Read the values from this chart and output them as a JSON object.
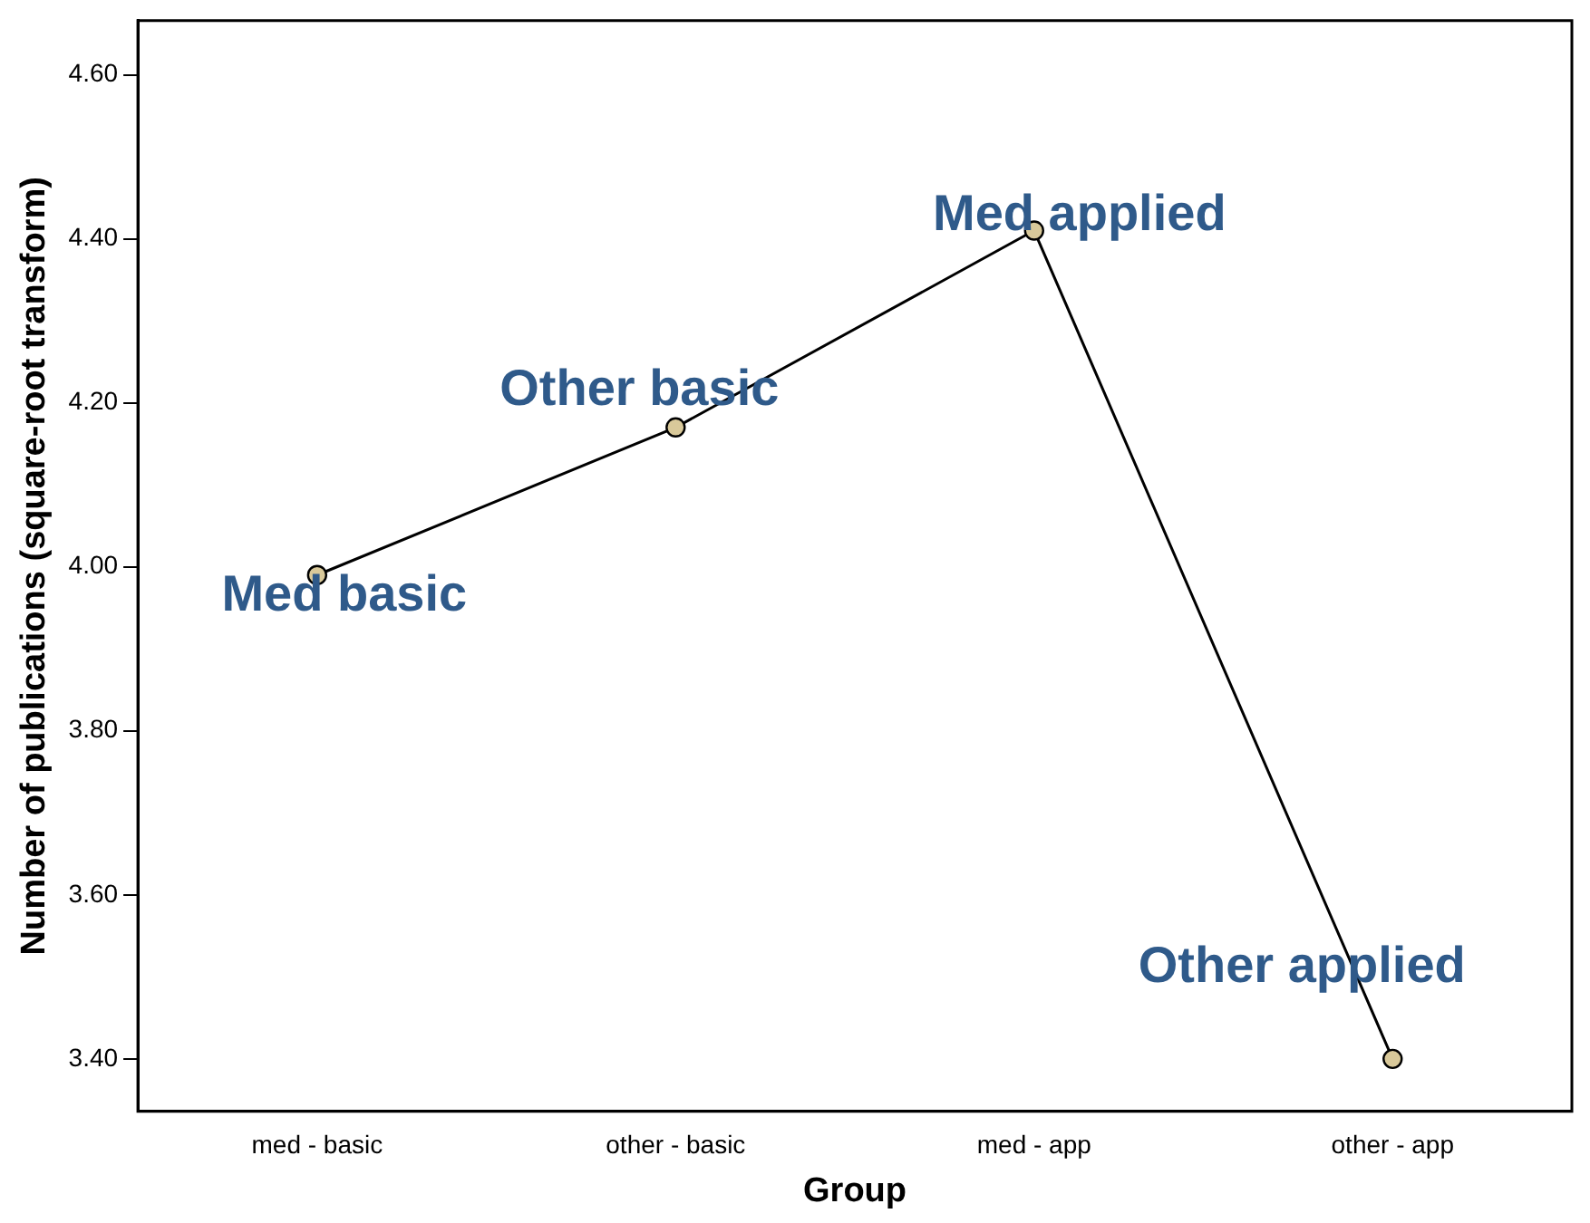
{
  "chart_data": {
    "type": "line",
    "xlabel": "Group",
    "ylabel": "Number of publications (square-root transform)",
    "categories": [
      "med - basic",
      "other - basic",
      "med - app",
      "other - app"
    ],
    "series": [
      {
        "color": "#000000",
        "values": [
          3.99,
          4.17,
          4.41,
          3.4
        ]
      }
    ],
    "marker": "circle",
    "line_style": "solid",
    "grid": false,
    "legend": false,
    "ylim": [
      3.336,
      4.666
    ],
    "yticks": [
      {
        "value": 3.4,
        "label": "3.40"
      },
      {
        "value": 3.6,
        "label": "3.60"
      },
      {
        "value": 3.8,
        "label": "3.80"
      },
      {
        "value": 4.0,
        "label": "4.00"
      },
      {
        "value": 4.2,
        "label": "4.20"
      },
      {
        "value": 4.4,
        "label": "4.40"
      },
      {
        "value": 4.6,
        "label": "4.60"
      }
    ],
    "annotations": [
      {
        "text": "Med basic",
        "x": "med - basic",
        "y": 3.99
      },
      {
        "text": "Other basic",
        "x": "other - basic",
        "y": 4.17
      },
      {
        "text": "Med applied",
        "x": "med - app",
        "y": 4.41
      },
      {
        "text": "Other applied",
        "x": "other - app",
        "y": 3.4
      }
    ]
  }
}
